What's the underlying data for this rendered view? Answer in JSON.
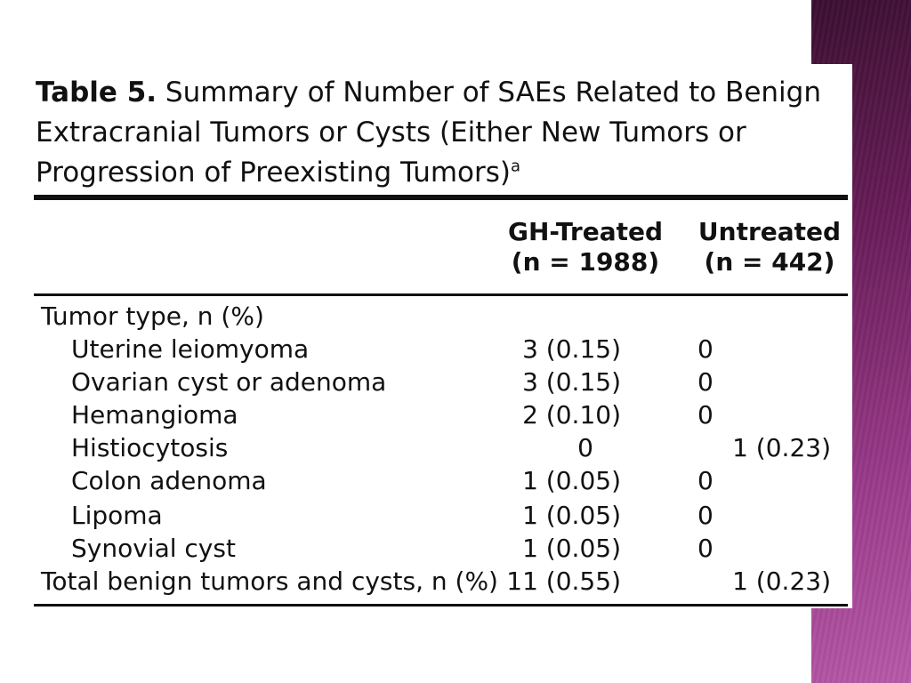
{
  "caption": {
    "label": "Table 5.",
    "text": "Summary of Number of SAEs Related to Benign Extracranial Tumors or Cysts (Either New Tumors or Progression of Preexisting Tumors)",
    "footnote_marker": "a"
  },
  "columns": {
    "gh": {
      "name": "GH-Treated",
      "n": "(n = 1988)"
    },
    "untreated": {
      "name": "Untreated",
      "n": "(n = 442)"
    }
  },
  "section_label": "Tumor type, n (%)",
  "rows": [
    {
      "label": "Uterine leiomyoma",
      "gh": "3 (0.15)",
      "untreated": "0"
    },
    {
      "label": "Ovarian cyst or adenoma",
      "gh": "3 (0.15)",
      "untreated": "0"
    },
    {
      "label": "Hemangioma",
      "gh": "2 (0.10)",
      "untreated": "0"
    },
    {
      "label": "Histiocytosis",
      "gh": "0",
      "untreated": "1 (0.23)"
    },
    {
      "label": "Colon adenoma",
      "gh": "1 (0.05)",
      "untreated": "0"
    },
    {
      "label": "Lipoma",
      "gh": "1 (0.05)",
      "untreated": "0"
    },
    {
      "label": "Synovial cyst",
      "gh": "1 (0.05)",
      "untreated": "0"
    }
  ],
  "total": {
    "label": "Total benign tumors and cysts, n (%)",
    "gh": "11 (0.55)",
    "untreated": "1 (0.23)"
  },
  "colors": {
    "side_bar": "#6a1d5a",
    "text": "#111111",
    "background": "#ffffff"
  }
}
